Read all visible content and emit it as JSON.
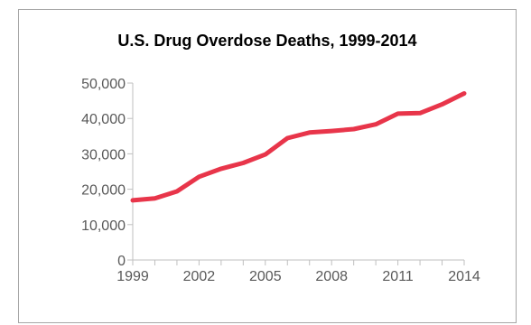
{
  "chart_data": {
    "type": "line",
    "title": "U.S. Drug Overdose Deaths, 1999-2014",
    "xlabel": "",
    "ylabel": "",
    "x": [
      1999,
      2000,
      2001,
      2002,
      2003,
      2004,
      2005,
      2006,
      2007,
      2008,
      2009,
      2010,
      2011,
      2012,
      2013,
      2014
    ],
    "series": [
      {
        "values": [
          16850,
          17420,
          19390,
          23520,
          25790,
          27420,
          29810,
          34430,
          36010,
          36450,
          37000,
          38330,
          41340,
          41500,
          43980,
          47060
        ]
      }
    ],
    "xlim": [
      1999,
      2014
    ],
    "ylim": [
      0,
      50000
    ],
    "x_ticks": [
      "1999",
      "2002",
      "2005",
      "2008",
      "2011",
      "2014"
    ],
    "y_ticks": [
      "0",
      "10,000",
      "20,000",
      "30,000",
      "40,000",
      "50,000"
    ],
    "grid": false,
    "legend": "none",
    "line_color": "#e8354a",
    "axis_color": "#bfbfbf",
    "tick_label_color": "#595959"
  }
}
